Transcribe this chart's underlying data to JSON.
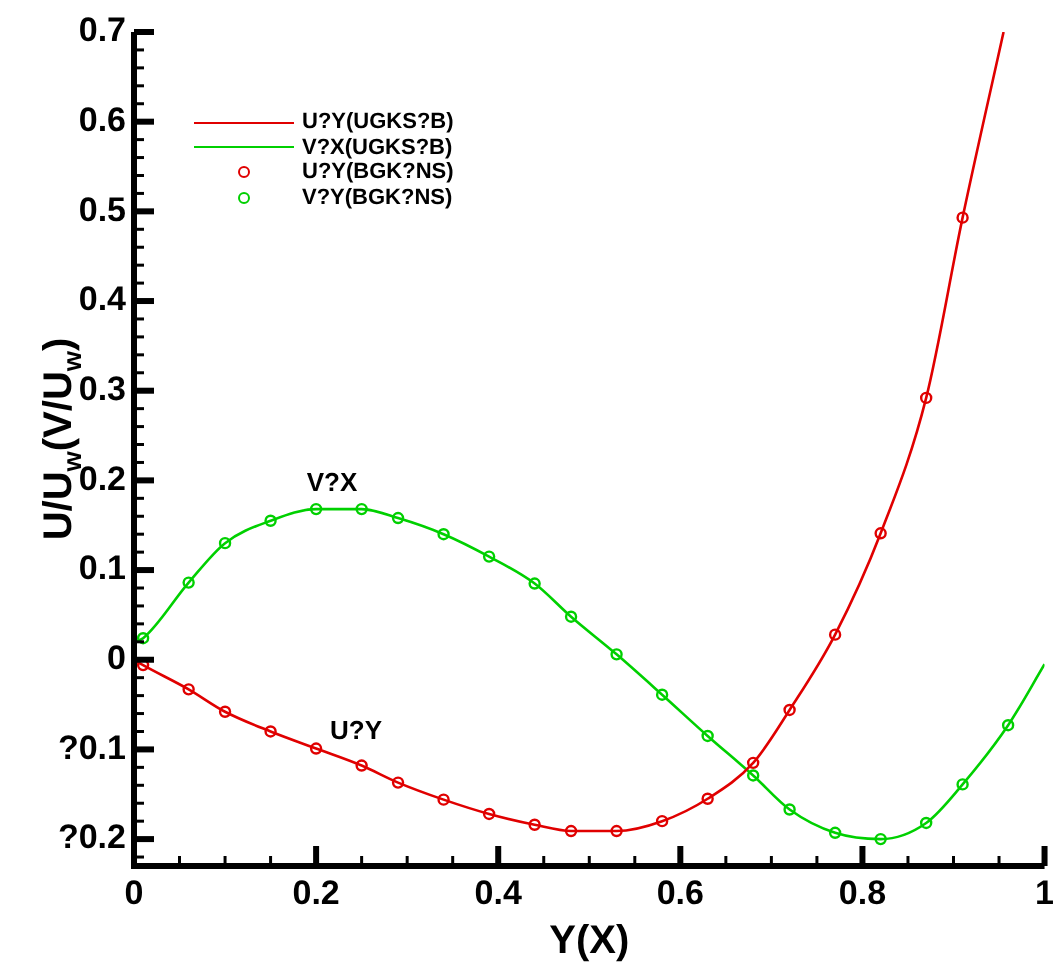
{
  "chart_data": {
    "type": "line",
    "xlabel": "Y(X)",
    "ylabel": "U/U$_{w}$(V/U$_{w}$)",
    "xlim": [
      0,
      1
    ],
    "ylim": [
      -0.23,
      0.7
    ],
    "xticks": [
      0,
      {
        "value": 0.05,
        "label": null
      },
      {
        "value": 0.1,
        "label": null
      },
      {
        "value": 0.15,
        "label": null
      },
      0.2,
      {
        "value": 0.25,
        "label": null
      },
      {
        "value": 0.3,
        "label": null
      },
      {
        "value": 0.35,
        "label": null
      },
      0.4,
      {
        "value": 0.45,
        "label": null
      },
      {
        "value": 0.5,
        "label": null
      },
      {
        "value": 0.55,
        "label": null
      },
      0.6,
      {
        "value": 0.65,
        "label": null
      },
      {
        "value": 0.7,
        "label": null
      },
      {
        "value": 0.75,
        "label": null
      },
      0.8,
      {
        "value": 0.85,
        "label": null
      },
      {
        "value": 0.9,
        "label": null
      },
      {
        "value": 0.95,
        "label": null
      },
      1
    ],
    "yticks": [
      {
        "value": -0.22,
        "label": null
      },
      {
        "value": -0.2,
        "label": "?0.2"
      },
      {
        "value": -0.18,
        "label": null
      },
      {
        "value": -0.16,
        "label": null
      },
      {
        "value": -0.14,
        "label": null
      },
      {
        "value": -0.12,
        "label": null
      },
      {
        "value": -0.1,
        "label": "?0.1"
      },
      {
        "value": -0.08,
        "label": null
      },
      {
        "value": -0.06,
        "label": null
      },
      {
        "value": -0.04,
        "label": null
      },
      {
        "value": -0.02,
        "label": null
      },
      0,
      {
        "value": 0.02,
        "label": null
      },
      {
        "value": 0.04,
        "label": null
      },
      {
        "value": 0.06,
        "label": null
      },
      {
        "value": 0.08,
        "label": null
      },
      0.1,
      {
        "value": 0.12,
        "label": null
      },
      {
        "value": 0.14,
        "label": null
      },
      {
        "value": 0.16,
        "label": null
      },
      {
        "value": 0.18,
        "label": null
      },
      0.2,
      {
        "value": 0.22,
        "label": null
      },
      {
        "value": 0.24,
        "label": null
      },
      {
        "value": 0.26,
        "label": null
      },
      {
        "value": 0.28,
        "label": null
      },
      0.3,
      {
        "value": 0.32,
        "label": null
      },
      {
        "value": 0.34,
        "label": null
      },
      {
        "value": 0.36,
        "label": null
      },
      {
        "value": 0.38,
        "label": null
      },
      0.4,
      {
        "value": 0.42,
        "label": null
      },
      {
        "value": 0.44,
        "label": null
      },
      {
        "value": 0.46,
        "label": null
      },
      {
        "value": 0.48,
        "label": null
      },
      0.5,
      {
        "value": 0.52,
        "label": null
      },
      {
        "value": 0.54,
        "label": null
      },
      {
        "value": 0.56,
        "label": null
      },
      {
        "value": 0.58,
        "label": null
      },
      0.6,
      {
        "value": 0.62,
        "label": null
      },
      {
        "value": 0.64,
        "label": null
      },
      {
        "value": 0.66,
        "label": null
      },
      {
        "value": 0.68,
        "label": null
      },
      0.7
    ],
    "grid": false,
    "legend": "top left",
    "series": [
      {
        "name": "U?Y(UGKS?B)",
        "type": "line",
        "marker": "none",
        "line_style": "solid",
        "color": "#e00000",
        "x": [
          0,
          0.01,
          0.06,
          0.1,
          0.15,
          0.2,
          0.25,
          0.29,
          0.34,
          0.39,
          0.44,
          0.48,
          0.53,
          0.58,
          0.63,
          0.68,
          0.72,
          0.77,
          0.82,
          0.87,
          0.91,
          0.955
        ],
        "values": [
          0,
          -0.006,
          -0.033,
          -0.058,
          -0.08,
          -0.099,
          -0.118,
          -0.137,
          -0.156,
          -0.172,
          -0.184,
          -0.191,
          -0.191,
          -0.18,
          -0.155,
          -0.115,
          -0.056,
          0.028,
          0.141,
          0.292,
          0.493,
          0.7
        ]
      },
      {
        "name": "V?X(UGKS?B)",
        "type": "line",
        "marker": "none",
        "line_style": "solid",
        "color": "#00d000",
        "x": [
          0,
          0.01,
          0.06,
          0.1,
          0.15,
          0.2,
          0.25,
          0.29,
          0.34,
          0.39,
          0.44,
          0.48,
          0.53,
          0.58,
          0.63,
          0.68,
          0.72,
          0.77,
          0.82,
          0.87,
          0.91,
          0.96,
          1
        ],
        "values": [
          0.02,
          0.024,
          0.086,
          0.13,
          0.155,
          0.168,
          0.168,
          0.158,
          0.14,
          0.115,
          0.085,
          0.048,
          0.006,
          -0.039,
          -0.085,
          -0.129,
          -0.167,
          -0.193,
          -0.2,
          -0.182,
          -0.139,
          -0.073,
          -0.005
        ]
      },
      {
        "name": "U?Y(BGK?NS)",
        "type": "scatter",
        "marker": "circle",
        "color": "#e00000",
        "x": [
          0.01,
          0.06,
          0.1,
          0.15,
          0.2,
          0.25,
          0.29,
          0.34,
          0.39,
          0.44,
          0.48,
          0.53,
          0.58,
          0.63,
          0.68,
          0.72,
          0.77,
          0.82,
          0.87,
          0.91
        ],
        "values": [
          -0.006,
          -0.033,
          -0.058,
          -0.08,
          -0.099,
          -0.118,
          -0.137,
          -0.156,
          -0.172,
          -0.184,
          -0.191,
          -0.191,
          -0.18,
          -0.155,
          -0.115,
          -0.056,
          0.028,
          0.141,
          0.292,
          0.493
        ]
      },
      {
        "name": "V?Y(BGK?NS)",
        "type": "scatter",
        "marker": "circle",
        "color": "#00d000",
        "x": [
          0.01,
          0.06,
          0.1,
          0.15,
          0.2,
          0.25,
          0.29,
          0.34,
          0.39,
          0.44,
          0.48,
          0.53,
          0.58,
          0.63,
          0.68,
          0.72,
          0.77,
          0.82,
          0.87,
          0.91,
          0.96
        ],
        "values": [
          0.024,
          0.086,
          0.13,
          0.155,
          0.168,
          0.168,
          0.158,
          0.14,
          0.115,
          0.085,
          0.048,
          0.006,
          -0.039,
          -0.085,
          -0.129,
          -0.167,
          -0.193,
          -0.2,
          -0.182,
          -0.139,
          -0.073
        ]
      }
    ],
    "annotations": [
      "V?X",
      "U?Y"
    ]
  }
}
